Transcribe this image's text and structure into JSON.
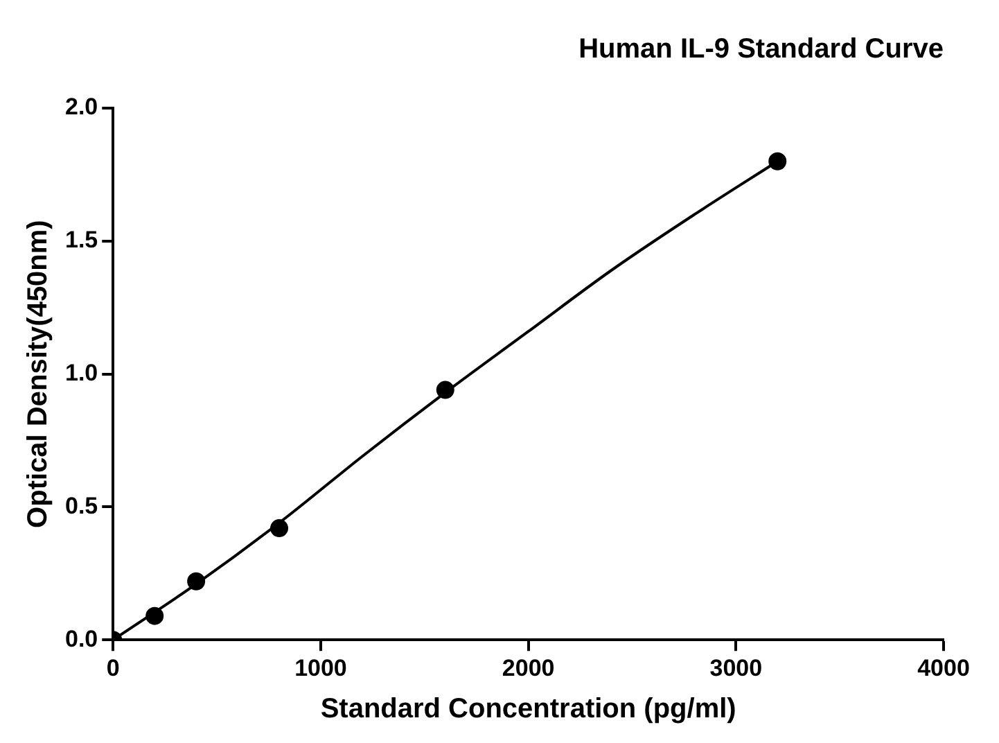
{
  "chart_data": {
    "type": "scatter",
    "title": "Human IL-9 Standard Curve",
    "xlabel": "Standard Concentration (pg/ml)",
    "ylabel": "Optical Density(450nm)",
    "xlim": [
      0,
      4000
    ],
    "xticks": [
      0,
      1000,
      2000,
      3000,
      4000
    ],
    "ylim": [
      0,
      2.0
    ],
    "yticks": [
      {
        "value": 0,
        "label": "0.0"
      },
      0.5,
      {
        "value": 1,
        "label": "1.0"
      },
      1.5,
      {
        "value": 2,
        "label": "2.0"
      }
    ],
    "grid": false,
    "legend": false,
    "series": [
      {
        "type": "line",
        "color": "#000000",
        "marker": "none",
        "x": [
          0,
          400,
          800,
          1200,
          1600,
          2000,
          2400,
          2800,
          3200
        ],
        "values": [
          0,
          0.21,
          0.44,
          0.69,
          0.93,
          1.16,
          1.39,
          1.6,
          1.8
        ]
      },
      {
        "type": "scatter",
        "color": "#000000",
        "marker": "circle",
        "x": [
          0,
          200,
          400,
          800,
          1600,
          3200
        ],
        "values": [
          0,
          0.09,
          0.22,
          0.42,
          0.94,
          1.8
        ]
      }
    ]
  }
}
